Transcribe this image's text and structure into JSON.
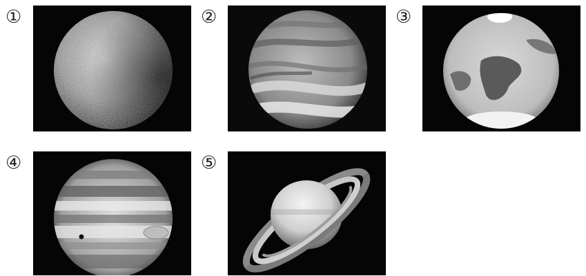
{
  "panels": [
    {
      "label": "①",
      "subject": "mercury-image"
    },
    {
      "label": "②",
      "subject": "venus-image"
    },
    {
      "label": "③",
      "subject": "mars-image"
    },
    {
      "label": "④",
      "subject": "jupiter-image"
    },
    {
      "label": "⑤",
      "subject": "saturn-image"
    }
  ]
}
